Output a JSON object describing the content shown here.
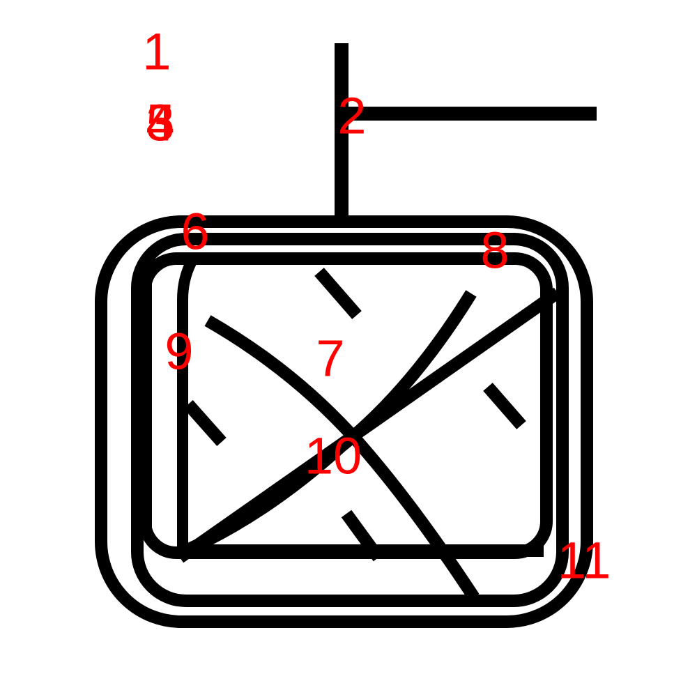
{
  "diagram": {
    "stroke_color": "#000000",
    "label_color": "#ff0000",
    "background_color": "#ffffff",
    "labels": [
      {
        "id": "1",
        "text": "1"
      },
      {
        "id": "2",
        "text": "2"
      },
      {
        "id": "3",
        "text": "3"
      },
      {
        "id": "4",
        "text": "4"
      },
      {
        "id": "5",
        "text": "5"
      },
      {
        "id": "6",
        "text": "6"
      },
      {
        "id": "7",
        "text": "7"
      },
      {
        "id": "8",
        "text": "8"
      },
      {
        "id": "9",
        "text": "9"
      },
      {
        "id": "10",
        "text": "10"
      },
      {
        "id": "11",
        "text": "11"
      }
    ]
  }
}
